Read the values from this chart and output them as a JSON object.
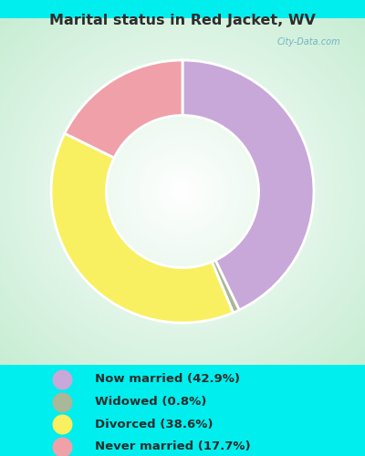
{
  "title": "Marital status in Red Jacket, WV",
  "title_color": "#2d2d2d",
  "background_color": "#00EEEE",
  "slices": [
    {
      "label": "Now married (42.9%)",
      "value": 42.9,
      "color": "#c8a8d8"
    },
    {
      "label": "Widowed (0.8%)",
      "value": 0.8,
      "color": "#a8b898"
    },
    {
      "label": "Divorced (38.6%)",
      "value": 38.6,
      "color": "#f8f060"
    },
    {
      "label": "Never married (17.7%)",
      "value": 17.7,
      "color": "#f0a0a8"
    }
  ],
  "legend_text_color": "#2d2d2d",
  "watermark": "City-Data.com",
  "figsize": [
    4.0,
    5.0
  ],
  "dpi": 100
}
